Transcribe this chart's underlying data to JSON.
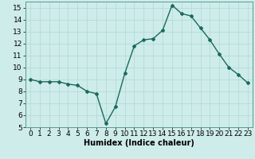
{
  "x": [
    0,
    1,
    2,
    3,
    4,
    5,
    6,
    7,
    8,
    9,
    10,
    11,
    12,
    13,
    14,
    15,
    16,
    17,
    18,
    19,
    20,
    21,
    22,
    23
  ],
  "y": [
    9.0,
    8.8,
    8.8,
    8.8,
    8.6,
    8.5,
    8.0,
    7.8,
    5.3,
    6.7,
    9.5,
    11.8,
    12.3,
    12.4,
    13.1,
    15.2,
    14.5,
    14.3,
    13.3,
    12.3,
    11.1,
    10.0,
    9.4,
    8.7
  ],
  "line_color": "#1a6b5a",
  "marker": "D",
  "markersize": 2.0,
  "linewidth": 1.0,
  "bg_color": "#ceecea",
  "grid_color": "#b0d8d4",
  "xlabel": "Humidex (Indice chaleur)",
  "xlim": [
    -0.5,
    23.5
  ],
  "ylim": [
    5,
    15.5
  ],
  "yticks": [
    5,
    6,
    7,
    8,
    9,
    10,
    11,
    12,
    13,
    14,
    15
  ],
  "xticks": [
    0,
    1,
    2,
    3,
    4,
    5,
    6,
    7,
    8,
    9,
    10,
    11,
    12,
    13,
    14,
    15,
    16,
    17,
    18,
    19,
    20,
    21,
    22,
    23
  ],
  "xlabel_fontsize": 7,
  "tick_fontsize": 6.5
}
